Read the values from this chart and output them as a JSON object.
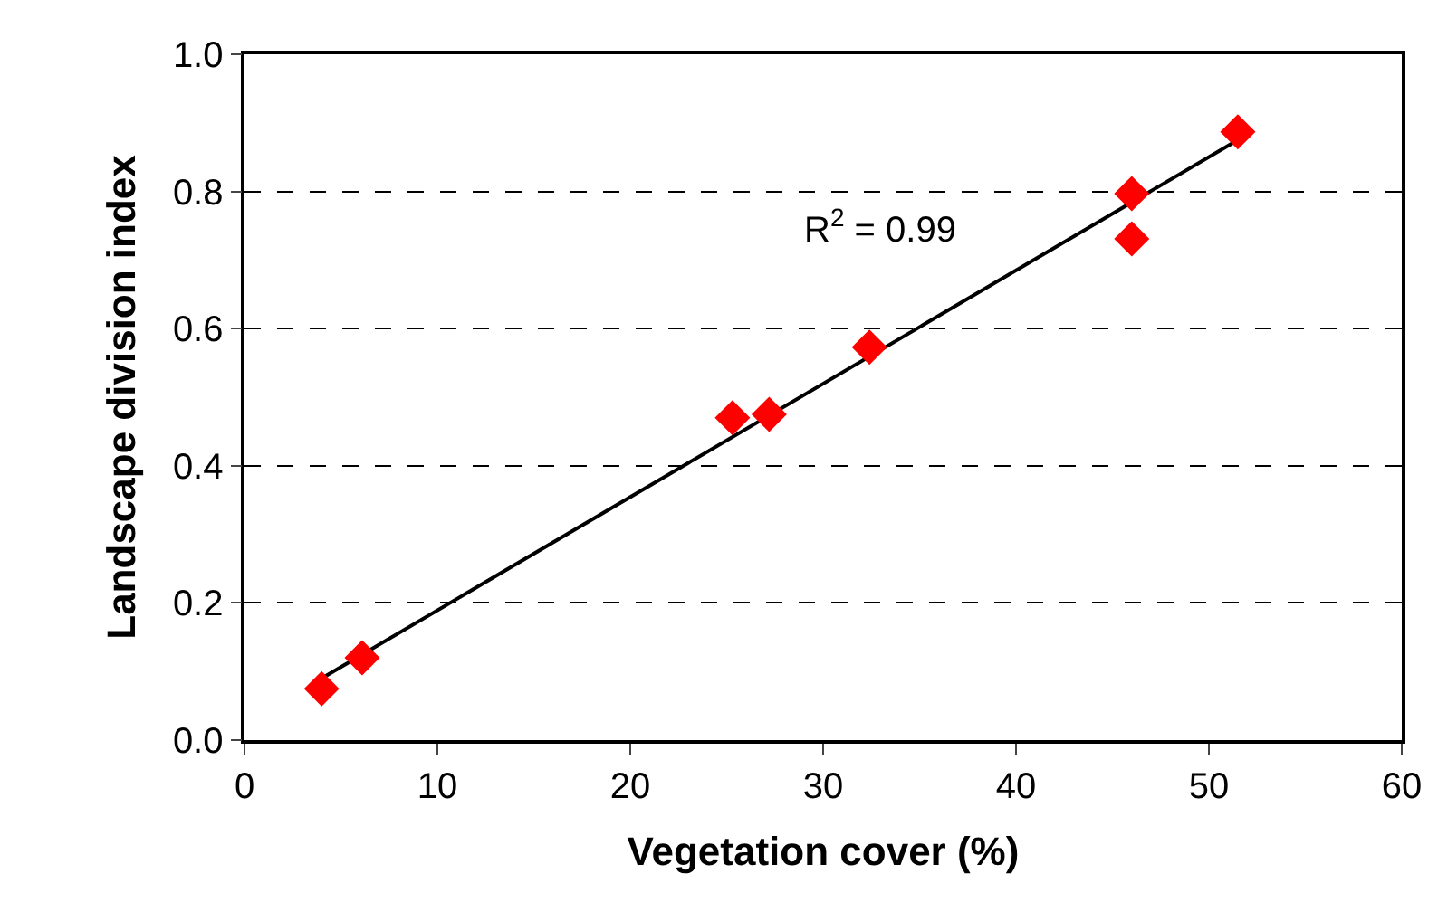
{
  "chart_data": {
    "type": "scatter",
    "xlabel": "Vegetation cover (%)",
    "ylabel": "Landscape division index",
    "xlim": [
      0,
      60
    ],
    "xticks": [
      0,
      10,
      20,
      30,
      40,
      50,
      60
    ],
    "ylim": [
      0,
      1
    ],
    "yticks": [
      {
        "value": 0,
        "label": "0.0"
      },
      0.2,
      0.4,
      0.6,
      0.8,
      {
        "value": 1,
        "label": "1.0"
      }
    ],
    "grid": "y",
    "marker": "diamond",
    "series": [
      {
        "color": "#ff0000",
        "x": [
          4.0,
          6.1,
          25.3,
          27.2,
          32.4,
          46.0,
          46.0,
          51.5
        ],
        "values": [
          0.075,
          0.12,
          0.47,
          0.475,
          0.573,
          0.797,
          0.731,
          0.887
        ]
      },
      {
        "type": "line",
        "color": "#000000",
        "x": [
          4.0,
          51.5
        ],
        "values": [
          0.09,
          0.875
        ],
        "marker": "none",
        "line_style": "solid"
      }
    ],
    "annotations": [
      "R$^{2}$ = 0.99"
    ]
  }
}
